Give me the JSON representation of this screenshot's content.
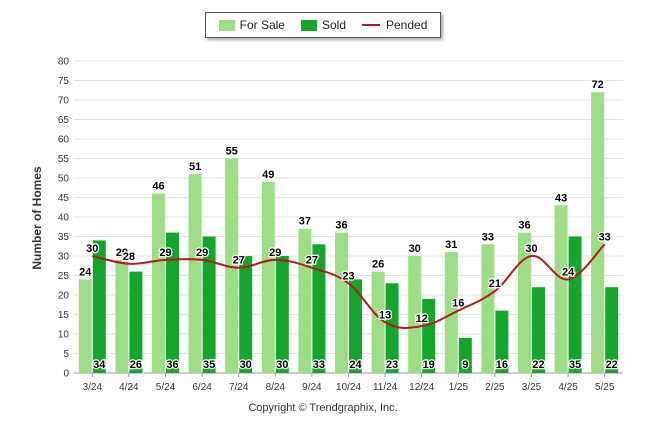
{
  "legend": {
    "for_sale": "For Sale",
    "sold": "Sold",
    "pended": "Pended"
  },
  "copyright": "Copyright © Trendgraphix, Inc.",
  "colors": {
    "for_sale": "#9ddd85",
    "sold": "#14a52c",
    "pended": "#b31c1c"
  },
  "chart_data": {
    "type": "bar",
    "ylabel": "Number of Homes",
    "xlabel": "",
    "ylim": [
      0,
      80
    ],
    "ytick_step": 5,
    "grid": true,
    "legend_position": "top-center",
    "categories": [
      "3/24",
      "4/24",
      "5/24",
      "6/24",
      "7/24",
      "8/24",
      "9/24",
      "10/24",
      "11/24",
      "12/24",
      "1/25",
      "2/25",
      "3/25",
      "4/25",
      "5/25"
    ],
    "series": [
      {
        "name": "For Sale",
        "type": "bar",
        "values": [
          24,
          29,
          46,
          51,
          55,
          49,
          37,
          36,
          26,
          30,
          31,
          33,
          36,
          43,
          72
        ]
      },
      {
        "name": "Sold",
        "type": "bar",
        "values": [
          34,
          26,
          36,
          35,
          30,
          30,
          33,
          24,
          23,
          19,
          9,
          16,
          22,
          35,
          22
        ]
      },
      {
        "name": "Pended",
        "type": "line",
        "values": [
          30,
          28,
          29,
          29,
          27,
          29,
          27,
          23,
          13,
          12,
          16,
          21,
          30,
          24,
          33
        ]
      }
    ]
  }
}
